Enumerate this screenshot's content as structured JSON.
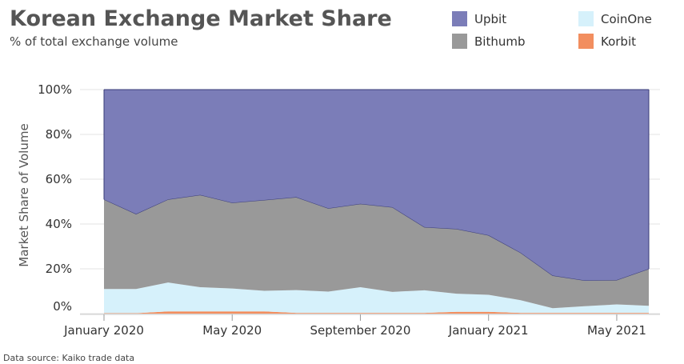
{
  "header": {
    "title": "Korean Exchange Market Share",
    "subtitle": "% of total exchange volume"
  },
  "footer": {
    "source": "Data source: Kaiko trade data"
  },
  "chart_data": {
    "type": "area",
    "stacked": true,
    "title": "Korean Exchange Market Share",
    "subtitle": "% of total exchange volume",
    "xlabel": "",
    "ylabel": "Market Share of Volume",
    "ylim": [
      0,
      100
    ],
    "grid": true,
    "legend_position": "top-right",
    "x": [
      "2020-01",
      "2020-02",
      "2020-03",
      "2020-04",
      "2020-05",
      "2020-06",
      "2020-07",
      "2020-08",
      "2020-09",
      "2020-10",
      "2020-11",
      "2020-12",
      "2021-01",
      "2021-02",
      "2021-03",
      "2021-04",
      "2021-05",
      "2021-06"
    ],
    "x_tick_labels": [
      "January 2020",
      "May 2020",
      "September 2020",
      "January 2021",
      "May 2021"
    ],
    "x_tick_positions": [
      "2020-01",
      "2020-05",
      "2020-09",
      "2021-01",
      "2021-05"
    ],
    "y_ticks": [
      0,
      20,
      40,
      60,
      80,
      100
    ],
    "y_tick_labels": [
      "0%",
      "20%",
      "40%",
      "60%",
      "80%",
      "100%"
    ],
    "series": [
      {
        "name": "Korbit",
        "color": "#f28e5f",
        "values": [
          0.2,
          0.2,
          1.0,
          1.0,
          1.0,
          1.0,
          0.3,
          0.3,
          0.3,
          0.3,
          0.3,
          0.8,
          0.8,
          0.3,
          0.3,
          0.3,
          0.3,
          0.3
        ]
      },
      {
        "name": "CoinOne",
        "color": "#d6f1fb",
        "values": [
          10.8,
          10.8,
          12.9,
          10.8,
          10.2,
          9.2,
          10.2,
          9.5,
          11.5,
          9.4,
          10.1,
          8.1,
          7.6,
          5.7,
          2.1,
          3.0,
          3.8,
          3.2
        ]
      },
      {
        "name": "Bithumb",
        "color": "#999999",
        "values": [
          40.0,
          33.5,
          37.1,
          41.2,
          38.3,
          40.5,
          41.5,
          37.2,
          37.2,
          37.8,
          28.2,
          28.9,
          26.6,
          21.2,
          14.6,
          11.5,
          10.9,
          16.5
        ]
      },
      {
        "name": "Upbit",
        "color": "#7b7db8",
        "values": [
          49.0,
          55.5,
          49.0,
          47.0,
          50.5,
          49.3,
          48.0,
          53.0,
          51.0,
          52.5,
          61.4,
          62.2,
          65.0,
          72.8,
          83.0,
          85.2,
          85.0,
          80.0
        ]
      }
    ]
  }
}
